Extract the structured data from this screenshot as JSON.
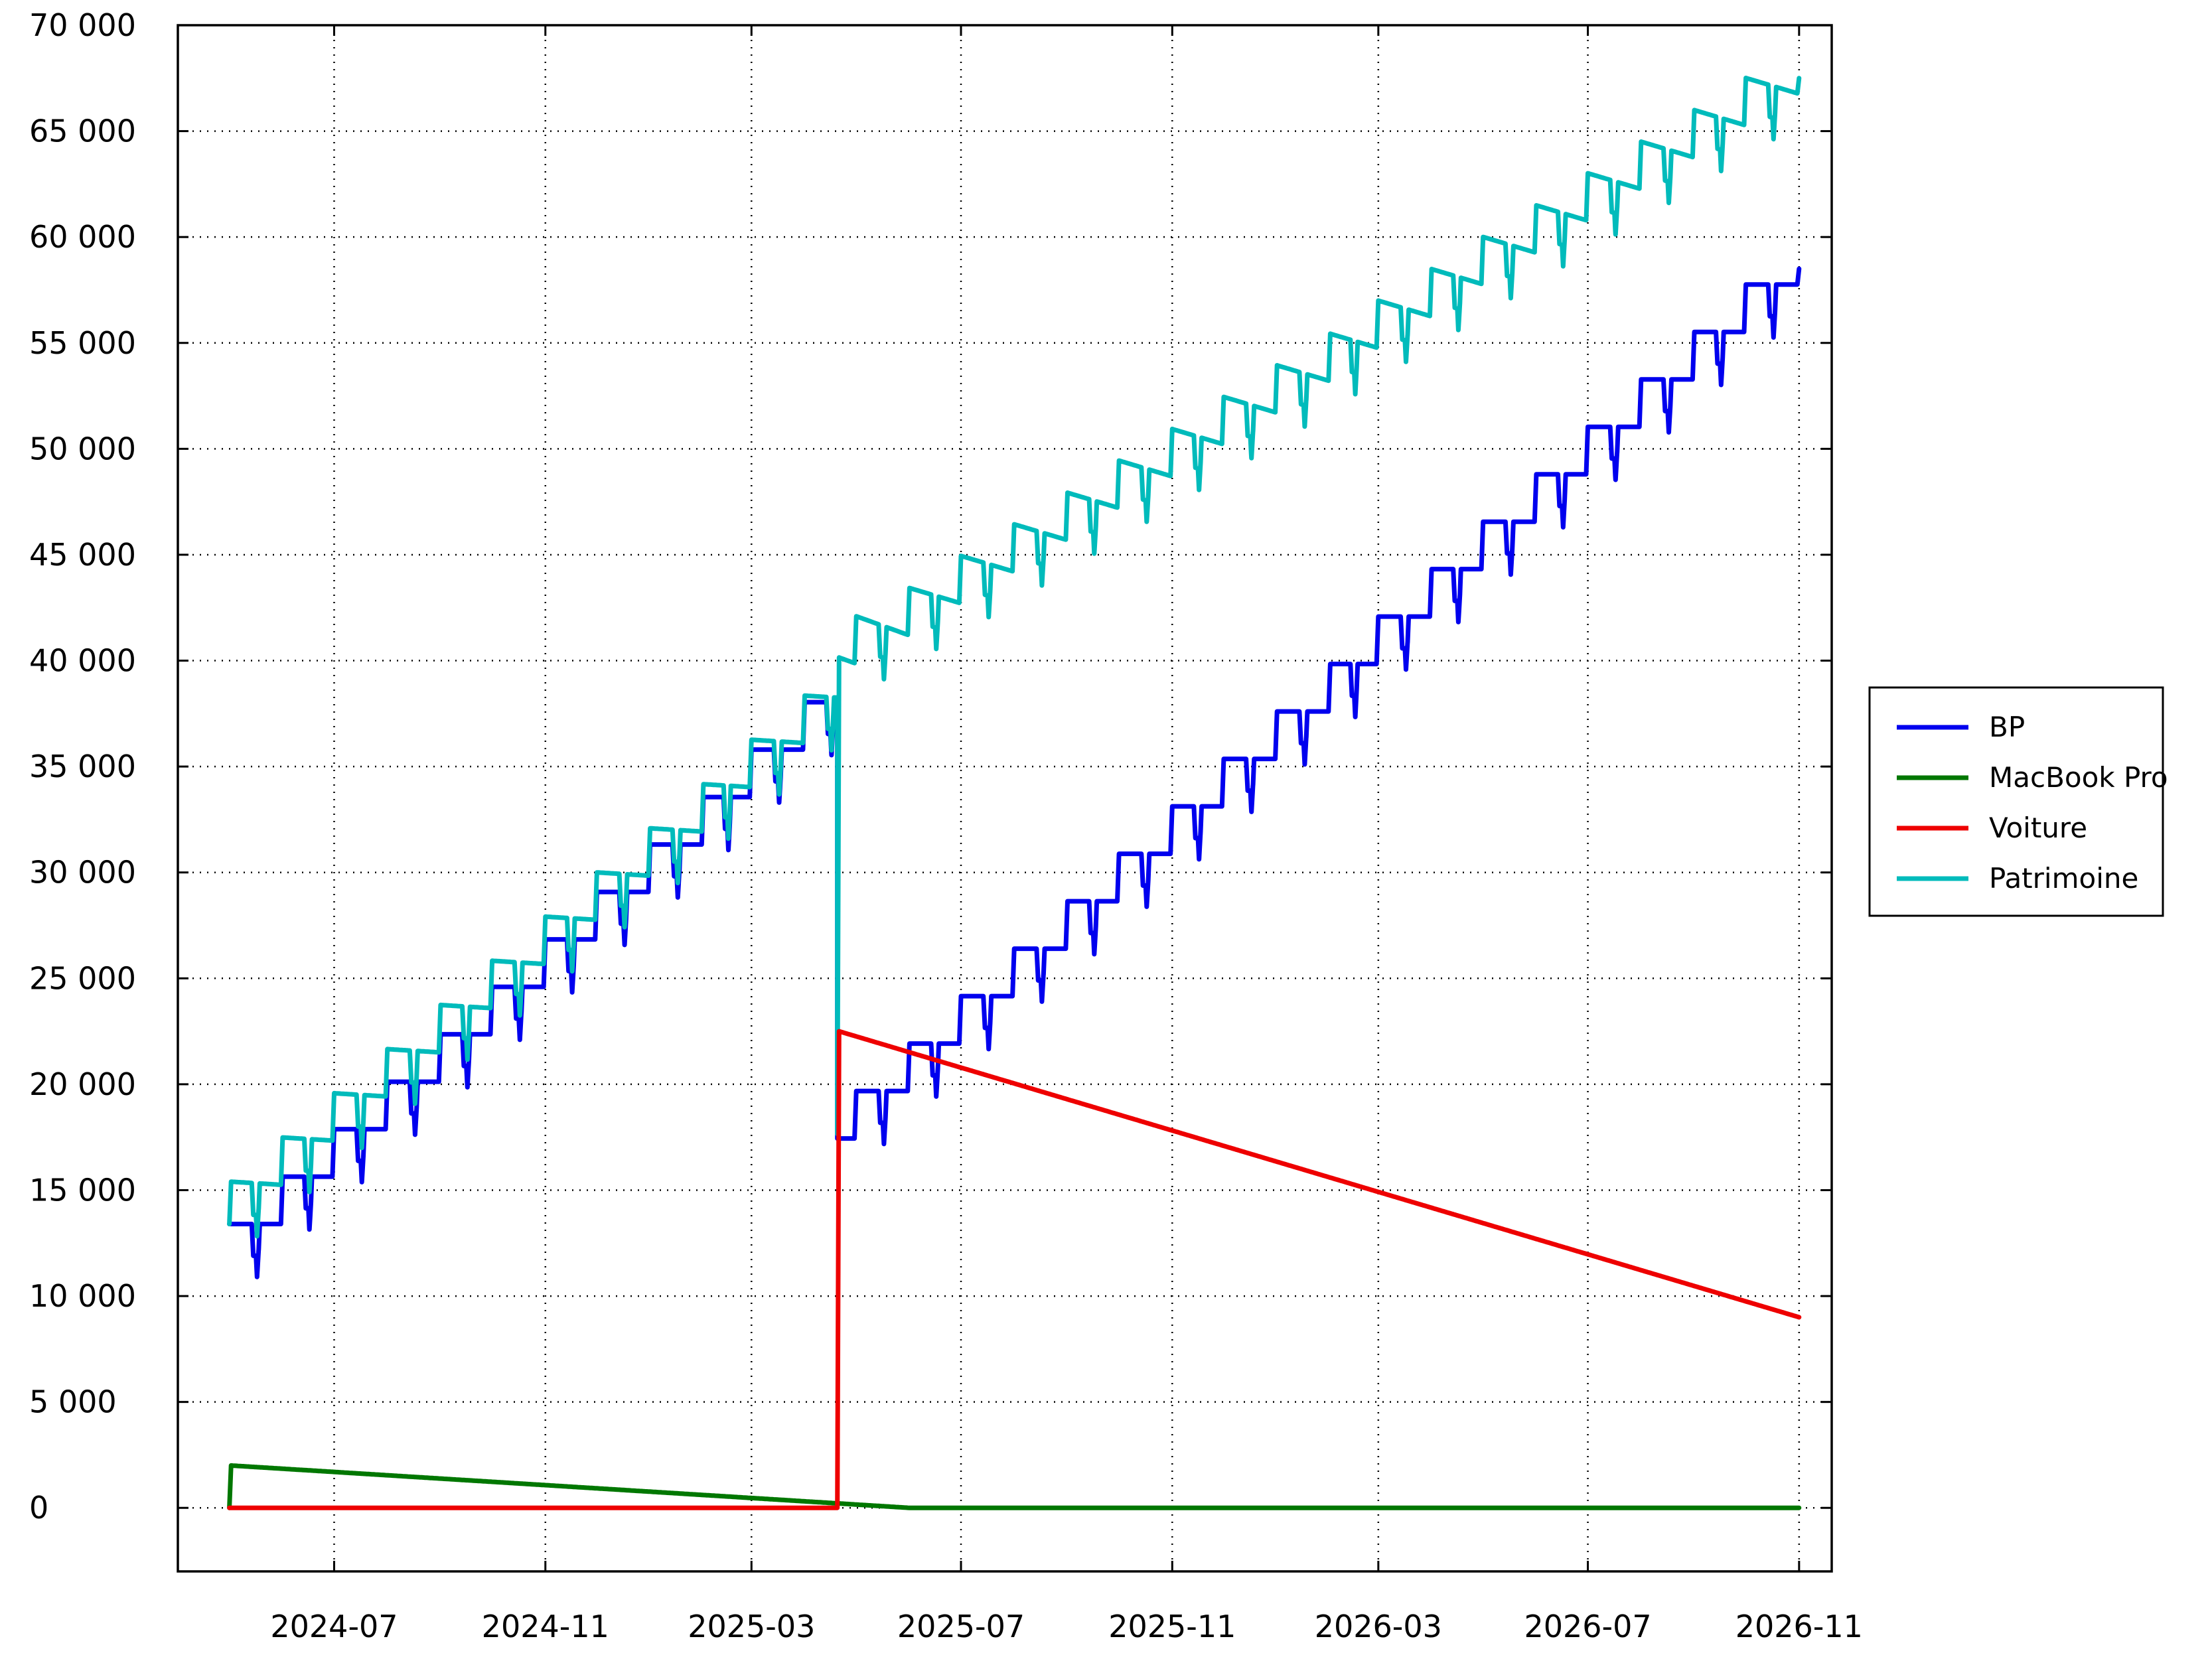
{
  "chart_data": {
    "type": "line",
    "title": "",
    "xlabel": "",
    "ylabel": "",
    "ylim": [
      -3000,
      70000
    ],
    "grid": true,
    "legend_position": "right",
    "x_domain": [
      "2024-04-01",
      "2026-11-20"
    ],
    "x_ticks": [
      {
        "date": "2024-07-01",
        "label": "2024-07"
      },
      {
        "date": "2024-11-01",
        "label": "2024-11"
      },
      {
        "date": "2025-03-01",
        "label": "2025-03"
      },
      {
        "date": "2025-07-01",
        "label": "2025-07"
      },
      {
        "date": "2025-11-01",
        "label": "2025-11"
      },
      {
        "date": "2026-03-01",
        "label": "2026-03"
      },
      {
        "date": "2026-07-01",
        "label": "2026-07"
      },
      {
        "date": "2026-11-01",
        "label": "2026-11"
      }
    ],
    "y_ticks": [
      {
        "value": 0,
        "label": "0"
      },
      {
        "value": 5000,
        "label": "5 000"
      },
      {
        "value": 10000,
        "label": "10 000"
      },
      {
        "value": 15000,
        "label": "15 000"
      },
      {
        "value": 20000,
        "label": "20 000"
      },
      {
        "value": 25000,
        "label": "25 000"
      },
      {
        "value": 30000,
        "label": "30 000"
      },
      {
        "value": 35000,
        "label": "35 000"
      },
      {
        "value": 40000,
        "label": "40 000"
      },
      {
        "value": 45000,
        "label": "45 000"
      },
      {
        "value": 50000,
        "label": "50 000"
      },
      {
        "value": 55000,
        "label": "55 000"
      },
      {
        "value": 60000,
        "label": "60 000"
      },
      {
        "value": 65000,
        "label": "65 000"
      },
      {
        "value": 70000,
        "label": "70 000"
      }
    ],
    "series": [
      {
        "name": "BP",
        "color": "#0000ee",
        "start": "2024-05-01",
        "months": 31,
        "first_plateau": 13400,
        "monthly_step": 2240,
        "dip_profile": [
          [
            0,
            0
          ],
          [
            0.42,
            0
          ],
          [
            0.45,
            -1500
          ],
          [
            0.5,
            -1500
          ],
          [
            0.52,
            -2500
          ],
          [
            0.55,
            -1200
          ],
          [
            0.57,
            0
          ]
        ],
        "drops": [
          {
            "date": "2025-04-20",
            "amount": 20600
          }
        ],
        "end": {
          "date": "2026-11-01",
          "value": 58500
        }
      },
      {
        "name": "MacBook Pro",
        "color": "#007700",
        "points": [
          [
            "2024-05-01",
            0
          ],
          [
            "2024-05-02",
            2000
          ],
          [
            "2025-06-01",
            0
          ],
          [
            "2026-11-01",
            0
          ]
        ]
      },
      {
        "name": "Voiture",
        "color": "#ee0000",
        "points": [
          [
            "2024-05-01",
            0
          ],
          [
            "2025-04-20",
            0
          ],
          [
            "2025-04-21",
            22500
          ],
          [
            "2026-11-01",
            9000
          ]
        ]
      },
      {
        "name": "Patrimoine",
        "color": "#00bbbb",
        "note": "sum of BP, MacBook Pro and Voiture"
      }
    ]
  }
}
